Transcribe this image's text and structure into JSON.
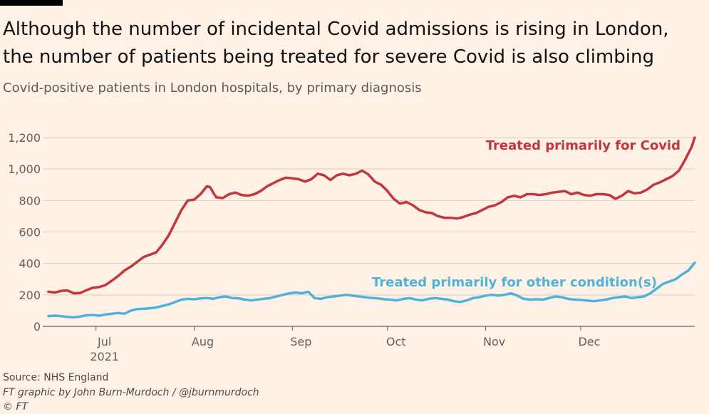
{
  "colors": {
    "background": "#fff1e5",
    "covid": "#c1373e",
    "other": "#4fb3d9",
    "grid": "#d9cfc6",
    "axis": "#66605c"
  },
  "header": {
    "title_line1": "Although the number of incidental Covid admissions is rising in London,",
    "title_line2": "the number of patients being treated for severe Covid is also climbing",
    "subtitle": "Covid-positive patients in London hospitals, by primary diagnosis"
  },
  "footer": {
    "source": "Source: NHS England",
    "credit": "FT graphic by John Burn-Murdoch / @jburnmurdoch",
    "logo": "© FT"
  },
  "chart_data": {
    "type": "line",
    "title": "Covid-positive patients in London hospitals, by primary diagnosis",
    "xlabel": "",
    "ylabel": "",
    "ylim": [
      0,
      1200
    ],
    "yticks": [
      0,
      200,
      400,
      600,
      800,
      1000,
      1200
    ],
    "ytick_labels": [
      "0",
      "200",
      "400",
      "600",
      "800",
      "1,000",
      "1,200"
    ],
    "x_unit": "days since 2021-06-01",
    "xlim": [
      15,
      219
    ],
    "xticks": [
      {
        "value": 30,
        "label": "Jul",
        "sublabel": "2021"
      },
      {
        "value": 61,
        "label": "Aug"
      },
      {
        "value": 92,
        "label": "Sep"
      },
      {
        "value": 122,
        "label": "Oct"
      },
      {
        "value": 153,
        "label": "Nov"
      },
      {
        "value": 183,
        "label": "Dec"
      }
    ],
    "series": [
      {
        "name": "Treated primarily for Covid",
        "color": "#c1373e",
        "points": [
          [
            15,
            220
          ],
          [
            17,
            215
          ],
          [
            19,
            225
          ],
          [
            21,
            228
          ],
          [
            23,
            210
          ],
          [
            25,
            212
          ],
          [
            27,
            230
          ],
          [
            29,
            245
          ],
          [
            31,
            250
          ],
          [
            33,
            262
          ],
          [
            35,
            290
          ],
          [
            37,
            320
          ],
          [
            39,
            355
          ],
          [
            41,
            380
          ],
          [
            43,
            410
          ],
          [
            45,
            440
          ],
          [
            47,
            455
          ],
          [
            49,
            470
          ],
          [
            51,
            520
          ],
          [
            53,
            580
          ],
          [
            55,
            660
          ],
          [
            57,
            740
          ],
          [
            59,
            800
          ],
          [
            61,
            805
          ],
          [
            63,
            840
          ],
          [
            65,
            890
          ],
          [
            66,
            885
          ],
          [
            67,
            850
          ],
          [
            68,
            820
          ],
          [
            70,
            815
          ],
          [
            72,
            840
          ],
          [
            74,
            850
          ],
          [
            76,
            835
          ],
          [
            78,
            830
          ],
          [
            80,
            840
          ],
          [
            82,
            860
          ],
          [
            84,
            890
          ],
          [
            86,
            910
          ],
          [
            88,
            930
          ],
          [
            90,
            945
          ],
          [
            92,
            940
          ],
          [
            94,
            935
          ],
          [
            96,
            920
          ],
          [
            98,
            935
          ],
          [
            100,
            970
          ],
          [
            102,
            960
          ],
          [
            104,
            930
          ],
          [
            106,
            960
          ],
          [
            108,
            970
          ],
          [
            110,
            960
          ],
          [
            112,
            970
          ],
          [
            114,
            990
          ],
          [
            116,
            965
          ],
          [
            118,
            920
          ],
          [
            120,
            900
          ],
          [
            122,
            860
          ],
          [
            124,
            810
          ],
          [
            126,
            780
          ],
          [
            128,
            790
          ],
          [
            130,
            770
          ],
          [
            132,
            740
          ],
          [
            134,
            725
          ],
          [
            136,
            720
          ],
          [
            138,
            700
          ],
          [
            140,
            690
          ],
          [
            142,
            690
          ],
          [
            144,
            685
          ],
          [
            146,
            695
          ],
          [
            148,
            710
          ],
          [
            150,
            720
          ],
          [
            152,
            740
          ],
          [
            154,
            760
          ],
          [
            156,
            770
          ],
          [
            158,
            790
          ],
          [
            160,
            820
          ],
          [
            162,
            830
          ],
          [
            164,
            820
          ],
          [
            166,
            840
          ],
          [
            168,
            840
          ],
          [
            170,
            835
          ],
          [
            172,
            840
          ],
          [
            174,
            850
          ],
          [
            176,
            855
          ],
          [
            178,
            860
          ],
          [
            180,
            840
          ],
          [
            182,
            850
          ],
          [
            184,
            835
          ],
          [
            186,
            830
          ],
          [
            188,
            840
          ],
          [
            190,
            840
          ],
          [
            192,
            835
          ],
          [
            194,
            810
          ],
          [
            196,
            830
          ],
          [
            198,
            860
          ],
          [
            200,
            845
          ],
          [
            202,
            850
          ],
          [
            204,
            870
          ],
          [
            206,
            900
          ],
          [
            208,
            915
          ],
          [
            210,
            935
          ],
          [
            212,
            955
          ],
          [
            214,
            990
          ],
          [
            216,
            1060
          ],
          [
            218,
            1140
          ],
          [
            219,
            1200
          ]
        ]
      },
      {
        "name": "Treated primarily for other condition(s)",
        "color": "#4fb3d9",
        "points": [
          [
            15,
            65
          ],
          [
            17,
            68
          ],
          [
            19,
            65
          ],
          [
            21,
            60
          ],
          [
            23,
            58
          ],
          [
            25,
            62
          ],
          [
            27,
            70
          ],
          [
            29,
            72
          ],
          [
            31,
            68
          ],
          [
            33,
            75
          ],
          [
            35,
            80
          ],
          [
            37,
            85
          ],
          [
            39,
            80
          ],
          [
            41,
            100
          ],
          [
            43,
            110
          ],
          [
            45,
            112
          ],
          [
            47,
            115
          ],
          [
            49,
            120
          ],
          [
            51,
            130
          ],
          [
            53,
            140
          ],
          [
            55,
            155
          ],
          [
            57,
            170
          ],
          [
            59,
            175
          ],
          [
            61,
            172
          ],
          [
            63,
            178
          ],
          [
            65,
            180
          ],
          [
            67,
            175
          ],
          [
            69,
            185
          ],
          [
            71,
            190
          ],
          [
            73,
            180
          ],
          [
            75,
            178
          ],
          [
            77,
            170
          ],
          [
            79,
            165
          ],
          [
            81,
            170
          ],
          [
            83,
            175
          ],
          [
            85,
            180
          ],
          [
            87,
            190
          ],
          [
            89,
            200
          ],
          [
            91,
            210
          ],
          [
            93,
            215
          ],
          [
            95,
            210
          ],
          [
            97,
            220
          ],
          [
            99,
            180
          ],
          [
            101,
            175
          ],
          [
            103,
            185
          ],
          [
            105,
            190
          ],
          [
            107,
            195
          ],
          [
            109,
            200
          ],
          [
            111,
            195
          ],
          [
            113,
            190
          ],
          [
            115,
            185
          ],
          [
            117,
            180
          ],
          [
            119,
            178
          ],
          [
            121,
            172
          ],
          [
            123,
            170
          ],
          [
            125,
            165
          ],
          [
            127,
            175
          ],
          [
            129,
            180
          ],
          [
            131,
            170
          ],
          [
            133,
            165
          ],
          [
            135,
            175
          ],
          [
            137,
            180
          ],
          [
            139,
            175
          ],
          [
            141,
            170
          ],
          [
            143,
            160
          ],
          [
            145,
            155
          ],
          [
            147,
            165
          ],
          [
            149,
            180
          ],
          [
            151,
            185
          ],
          [
            153,
            195
          ],
          [
            155,
            200
          ],
          [
            157,
            195
          ],
          [
            159,
            200
          ],
          [
            161,
            210
          ],
          [
            163,
            195
          ],
          [
            165,
            175
          ],
          [
            167,
            170
          ],
          [
            169,
            172
          ],
          [
            171,
            170
          ],
          [
            173,
            180
          ],
          [
            175,
            190
          ],
          [
            177,
            185
          ],
          [
            179,
            175
          ],
          [
            181,
            170
          ],
          [
            183,
            168
          ],
          [
            185,
            165
          ],
          [
            187,
            160
          ],
          [
            189,
            165
          ],
          [
            191,
            170
          ],
          [
            193,
            180
          ],
          [
            195,
            185
          ],
          [
            197,
            190
          ],
          [
            199,
            180
          ],
          [
            201,
            185
          ],
          [
            203,
            190
          ],
          [
            205,
            210
          ],
          [
            207,
            240
          ],
          [
            209,
            270
          ],
          [
            211,
            285
          ],
          [
            213,
            300
          ],
          [
            215,
            330
          ],
          [
            217,
            355
          ],
          [
            219,
            405
          ]
        ]
      }
    ],
    "annotations": [
      {
        "text": "Treated primarily for Covid",
        "series": 0
      },
      {
        "text": "Treated primarily for other condition(s)",
        "series": 1
      }
    ]
  }
}
